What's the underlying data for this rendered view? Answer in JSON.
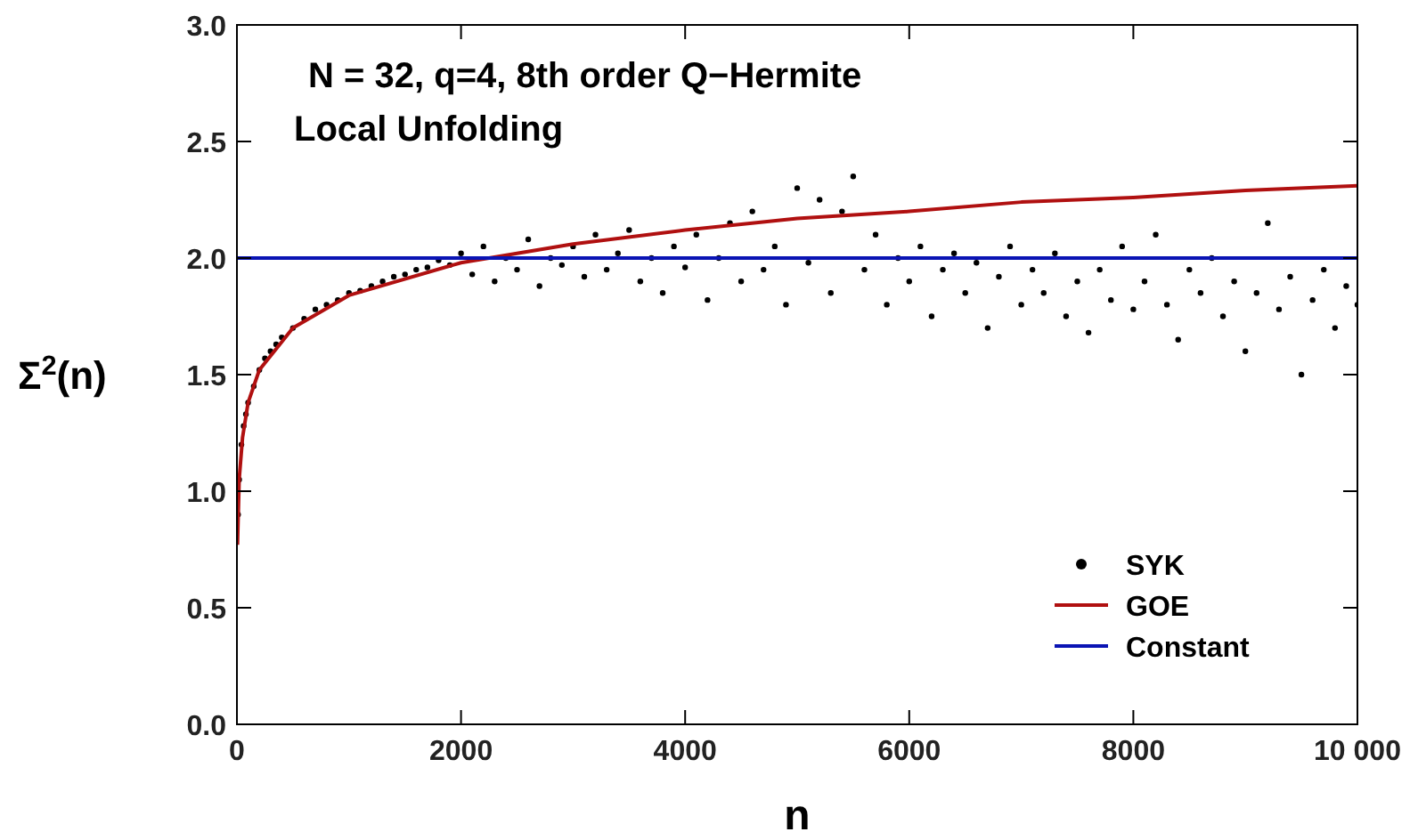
{
  "chart_data": {
    "type": "scatter",
    "title": "N = 32, q=4, 8th order Q−Hermite",
    "subtitle": "Local Unfolding",
    "xlabel": "n",
    "ylabel": "Σ$^{2}$(n)",
    "xlim": [
      0,
      10000
    ],
    "xticks": [
      0,
      2000,
      4000,
      6000,
      8000,
      {
        "value": 10000,
        "label": "10 000"
      }
    ],
    "ylim": [
      0,
      3
    ],
    "yticks": [
      {
        "value": 0,
        "label": "0.0"
      },
      {
        "value": 0.5,
        "label": "0.5"
      },
      {
        "value": 1,
        "label": "1.0"
      },
      {
        "value": 1.5,
        "label": "1.5"
      },
      {
        "value": 2,
        "label": "2.0"
      },
      {
        "value": 2.5,
        "label": "2.5"
      },
      {
        "value": 3,
        "label": "3.0"
      }
    ],
    "grid": false,
    "legend": "bottom right",
    "series": [
      {
        "name": "SYK",
        "marker": "circle",
        "color": "#000000",
        "x": [
          10,
          20,
          40,
          60,
          80,
          100,
          150,
          200,
          250,
          300,
          350,
          400,
          500,
          600,
          700,
          800,
          900,
          1000,
          1100,
          1200,
          1300,
          1400,
          1500,
          1600,
          1700,
          1800,
          1900,
          2000,
          2100,
          2200,
          2300,
          2400,
          2500,
          2600,
          2700,
          2800,
          2900,
          3000,
          3100,
          3200,
          3300,
          3400,
          3500,
          3600,
          3700,
          3800,
          3900,
          4000,
          4100,
          4200,
          4300,
          4400,
          4500,
          4600,
          4700,
          4800,
          4900,
          5000,
          5100,
          5200,
          5300,
          5400,
          5500,
          5600,
          5700,
          5800,
          5900,
          6000,
          6100,
          6200,
          6300,
          6400,
          6500,
          6600,
          6700,
          6800,
          6900,
          7000,
          7100,
          7200,
          7300,
          7400,
          7500,
          7600,
          7700,
          7800,
          7900,
          8000,
          8100,
          8200,
          8300,
          8400,
          8500,
          8600,
          8700,
          8800,
          8900,
          9000,
          9100,
          9200,
          9300,
          9400,
          9500,
          9600,
          9700,
          9800,
          9900,
          10000
        ],
        "values": [
          0.9,
          1.05,
          1.2,
          1.28,
          1.33,
          1.38,
          1.45,
          1.52,
          1.57,
          1.6,
          1.63,
          1.66,
          1.7,
          1.74,
          1.78,
          1.8,
          1.82,
          1.85,
          1.86,
          1.88,
          1.9,
          1.92,
          1.93,
          1.95,
          1.96,
          1.99,
          1.97,
          2.02,
          1.93,
          2.05,
          1.9,
          2.0,
          1.95,
          2.08,
          1.88,
          2.0,
          1.97,
          2.05,
          1.92,
          2.1,
          1.95,
          2.02,
          2.12,
          1.9,
          2.0,
          1.85,
          2.05,
          1.96,
          2.1,
          1.82,
          2.0,
          2.15,
          1.9,
          2.2,
          1.95,
          2.05,
          1.8,
          2.3,
          1.98,
          2.25,
          1.85,
          2.2,
          2.35,
          1.95,
          2.1,
          1.8,
          2.0,
          1.9,
          2.05,
          1.75,
          1.95,
          2.02,
          1.85,
          1.98,
          1.7,
          1.92,
          2.05,
          1.8,
          1.95,
          1.85,
          2.02,
          1.75,
          1.9,
          1.68,
          1.95,
          1.82,
          2.05,
          1.78,
          1.9,
          2.1,
          1.8,
          1.65,
          1.95,
          1.85,
          2.0,
          1.75,
          1.9,
          1.6,
          1.85,
          2.15,
          1.78,
          1.92,
          1.5,
          1.82,
          1.95,
          1.7,
          1.88,
          1.8
        ]
      },
      {
        "name": "GOE",
        "type": "line",
        "marker": "none",
        "line_style": "solid",
        "color": "#b01010",
        "x": [
          5,
          20,
          50,
          100,
          200,
          500,
          1000,
          2000,
          3000,
          4000,
          5000,
          6000,
          7000,
          8000,
          9000,
          10000
        ],
        "values": [
          0.77,
          1.05,
          1.23,
          1.38,
          1.52,
          1.7,
          1.84,
          1.98,
          2.06,
          2.12,
          2.17,
          2.2,
          2.24,
          2.26,
          2.29,
          2.31
        ]
      },
      {
        "name": "Constant",
        "type": "line",
        "marker": "none",
        "line_style": "solid",
        "color": "#0a14b4",
        "x": [
          0,
          10000
        ],
        "values": [
          2,
          2
        ]
      }
    ]
  }
}
